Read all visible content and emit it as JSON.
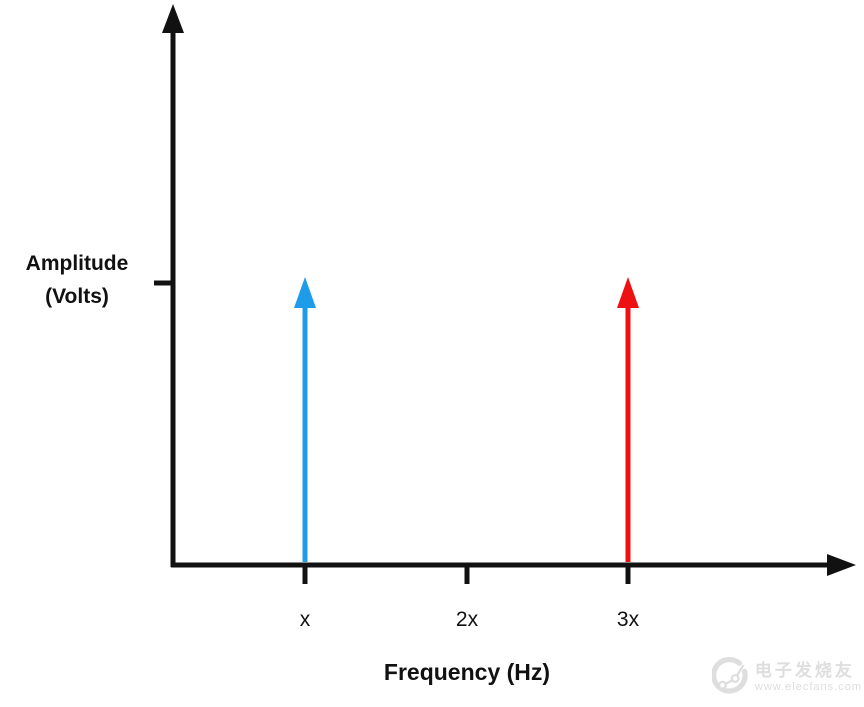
{
  "page": {
    "background": "#ffffff"
  },
  "chart_data": {
    "type": "stem",
    "title": "",
    "xlabel": "Frequency (Hz)",
    "ylabel": "Amplitude (Volts)",
    "ylabel_lines": [
      "Amplitude",
      "(Volts)"
    ],
    "x_tick_labels": [
      "x",
      "2x",
      "3x"
    ],
    "y_tick_labels": [],
    "axis_color": "#111111",
    "grid": false,
    "legend": false,
    "spikes": [
      {
        "x": "x",
        "amplitude": 1,
        "color": "#1E9BE9"
      },
      {
        "x": "3x",
        "amplitude": 1,
        "color": "#EE1111"
      }
    ],
    "annotations": "Two equal-amplitude impulses at frequencies x and 3x; the single unlabeled y-axis tick marks their common amplitude level; no impulse at 2x."
  },
  "watermark": {
    "brand": "电子发烧友",
    "url": "www.elecfans.com",
    "color": "#dedede"
  }
}
